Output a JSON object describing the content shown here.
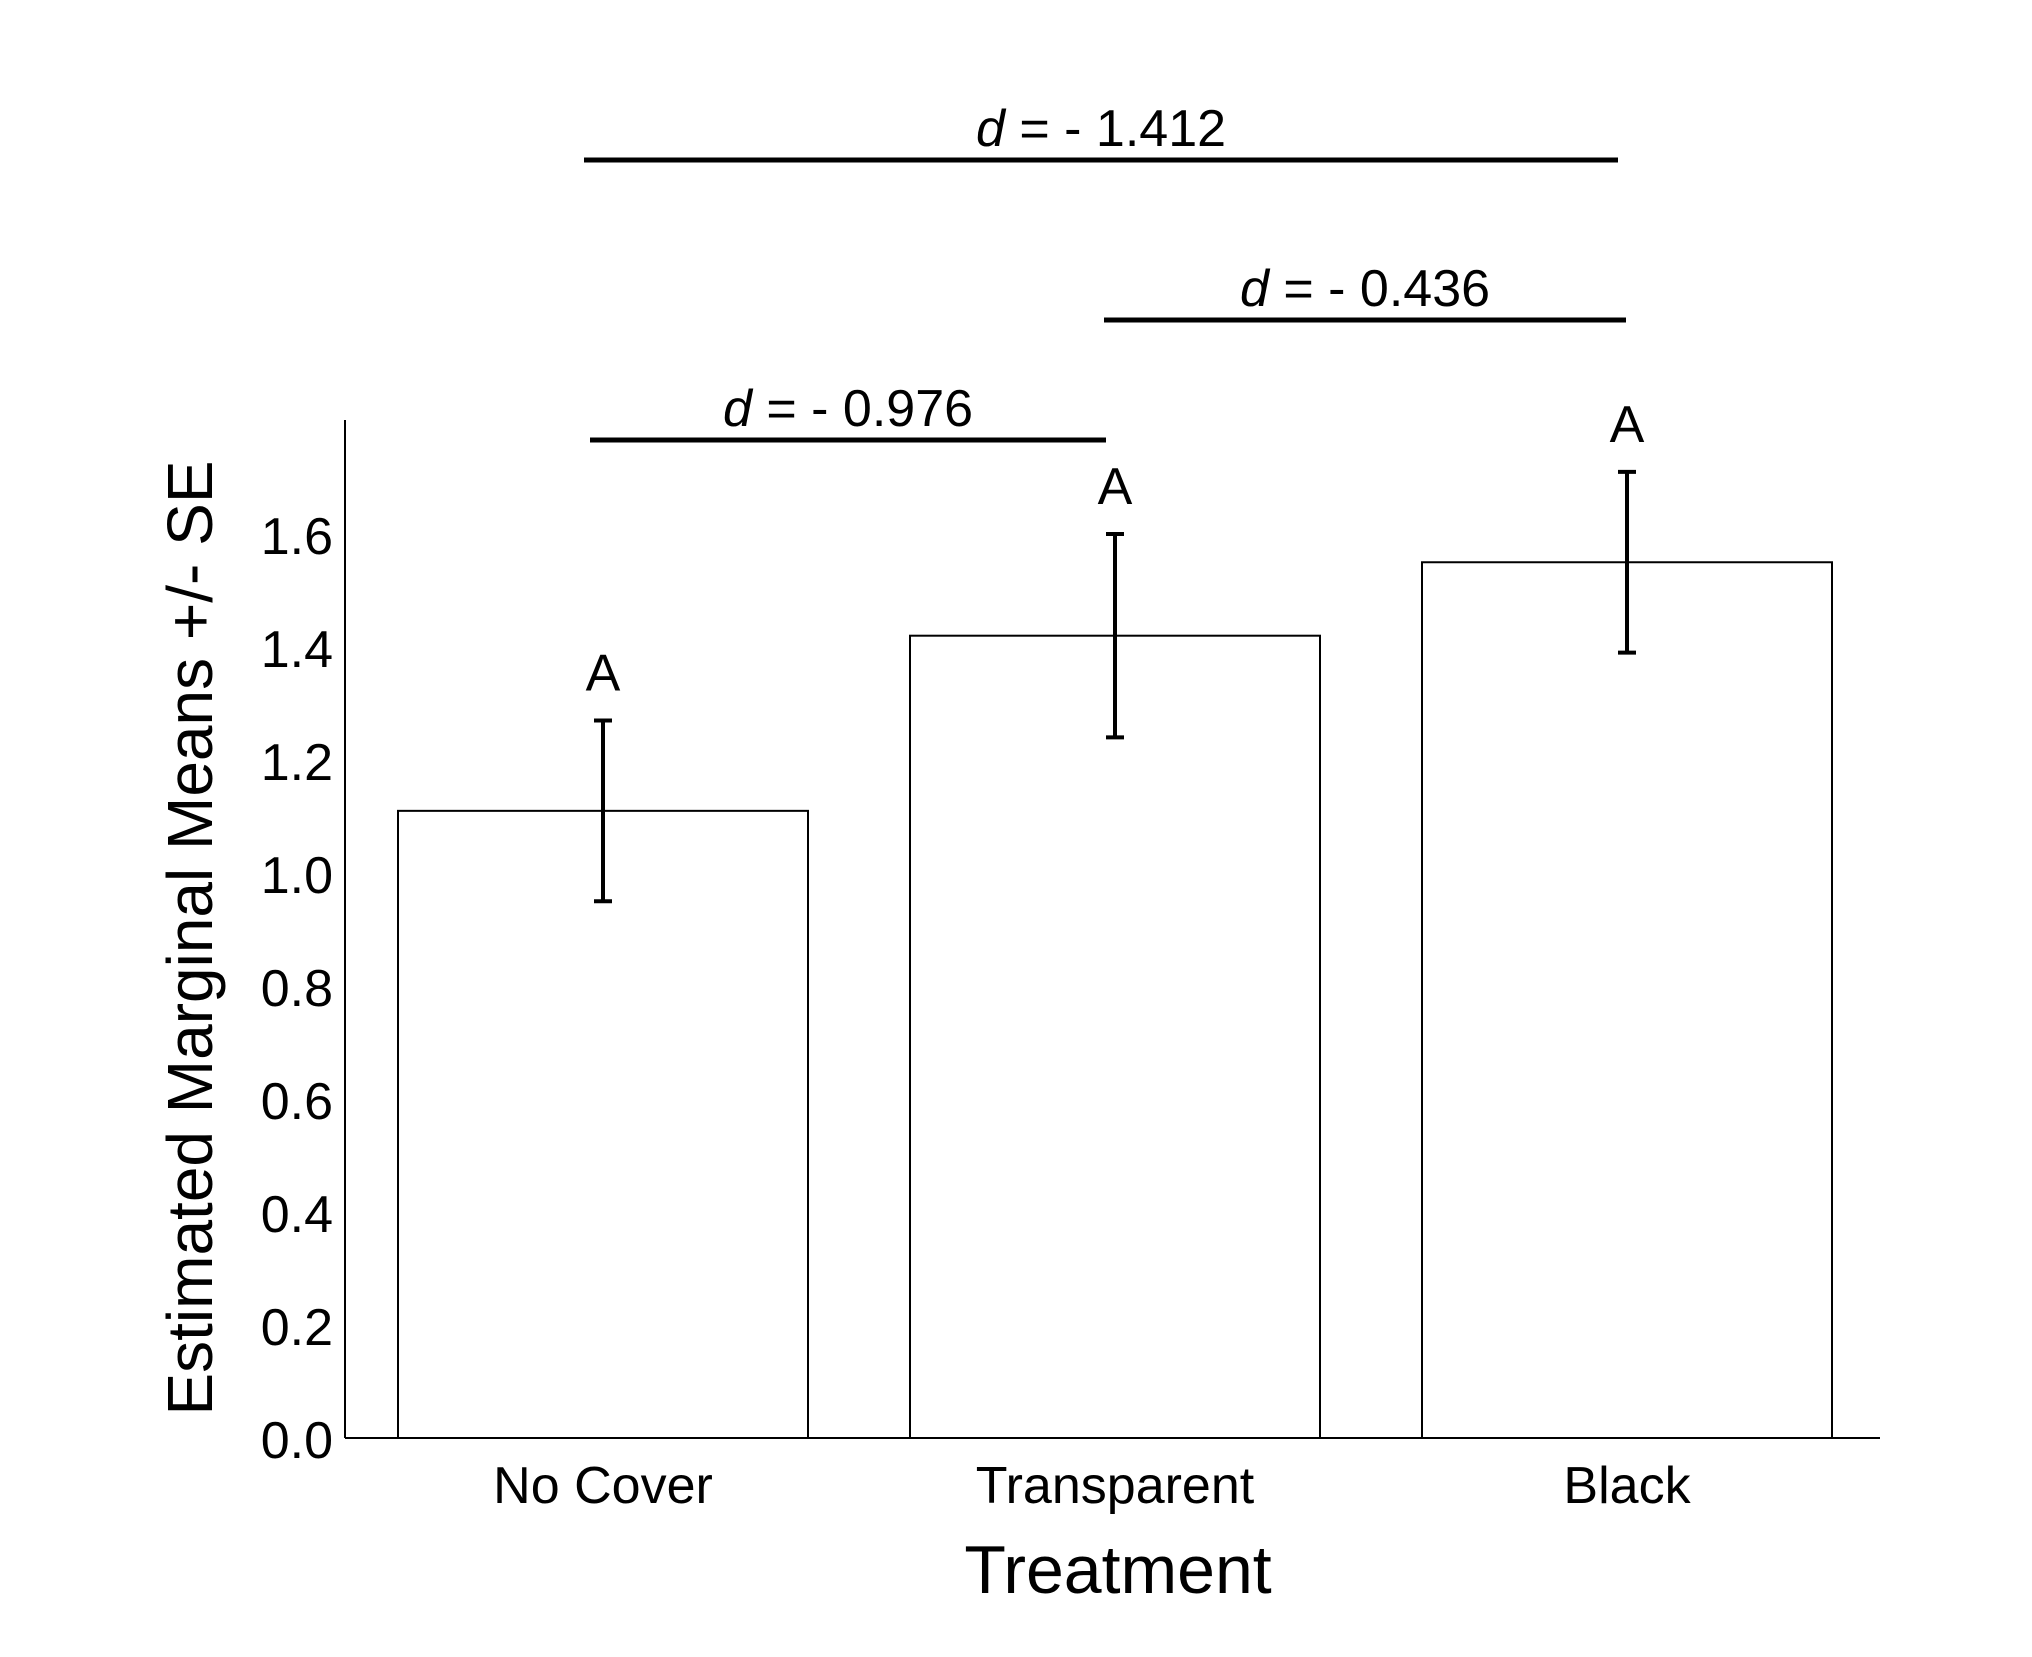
{
  "chart_data": {
    "type": "bar",
    "categories": [
      "No Cover",
      "Transparent",
      "Black"
    ],
    "values": [
      1.11,
      1.42,
      1.55
    ],
    "se_lower": [
      0.95,
      1.24,
      1.39
    ],
    "se_upper": [
      1.27,
      1.6,
      1.71
    ],
    "letters": [
      "A",
      "A",
      "A"
    ],
    "xlabel": "Treatment",
    "ylabel": "Estimated Marginal Means +/- SE",
    "ylim": [
      0,
      1.8
    ],
    "yticks": [
      "0.0",
      "0.2",
      "0.4",
      "0.6",
      "0.8",
      "1.0",
      "1.2",
      "1.4",
      "1.6"
    ],
    "bar_fill": "#ffffff",
    "bar_stroke": "#000000",
    "comparisons": [
      {
        "from": "No Cover",
        "to": "Transparent",
        "symbol": "d",
        "text": " = - 0.976"
      },
      {
        "from": "Transparent",
        "to": "Black",
        "symbol": "d",
        "text": " = - 0.436"
      },
      {
        "from": "No Cover",
        "to": "Black",
        "symbol": "d",
        "text": " = - 1.412"
      }
    ]
  }
}
